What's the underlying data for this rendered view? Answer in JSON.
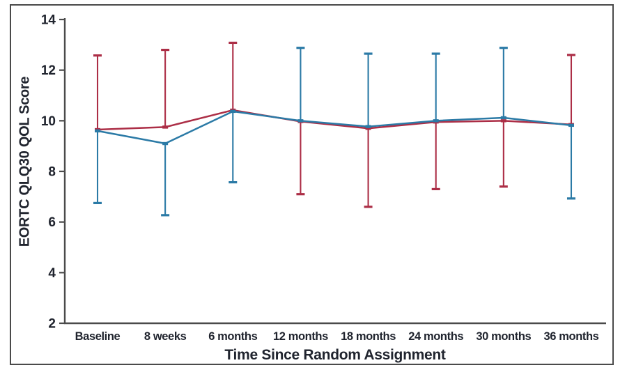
{
  "chart_data": {
    "type": "line",
    "title": "",
    "xlabel": "Time Since Random Assignment",
    "ylabel": "EORTC QLQ30 QOL Score",
    "categories": [
      "Baseline",
      "8 weeks",
      "6 months",
      "12 months",
      "18 months",
      "24 months",
      "30 months",
      "36 months"
    ],
    "ylim": [
      2,
      14
    ],
    "yticks": [
      2,
      4,
      6,
      8,
      10,
      12,
      14
    ],
    "grid": false,
    "legend_position": "none",
    "error_bars": "one-sided, direction alternates per point to avoid overlap",
    "series": [
      {
        "name": "red",
        "color": "#ac2e46",
        "marker": "square",
        "values": [
          9.65,
          9.75,
          10.42,
          9.97,
          9.7,
          9.95,
          10.0,
          9.85
        ],
        "error_direction": [
          "up",
          "up",
          "up",
          "down",
          "down",
          "down",
          "down",
          "up"
        ],
        "error_end": [
          12.58,
          12.8,
          13.08,
          7.1,
          6.6,
          7.3,
          7.4,
          12.6
        ]
      },
      {
        "name": "blue",
        "color": "#2b7aa6",
        "marker": "square",
        "values": [
          9.6,
          9.1,
          10.37,
          10.0,
          9.77,
          10.0,
          10.12,
          9.82
        ],
        "error_direction": [
          "down",
          "down",
          "down",
          "up",
          "up",
          "up",
          "up",
          "down"
        ],
        "error_end": [
          6.75,
          6.27,
          7.57,
          12.88,
          12.65,
          12.65,
          12.88,
          6.93
        ]
      }
    ]
  },
  "colors": {
    "axis": "#4a4a4a",
    "border": "#4a4a4a",
    "label_text": "#20242e",
    "background": "#ffffff",
    "red_series": "#ac2e46",
    "blue_series": "#2b7aa6"
  }
}
